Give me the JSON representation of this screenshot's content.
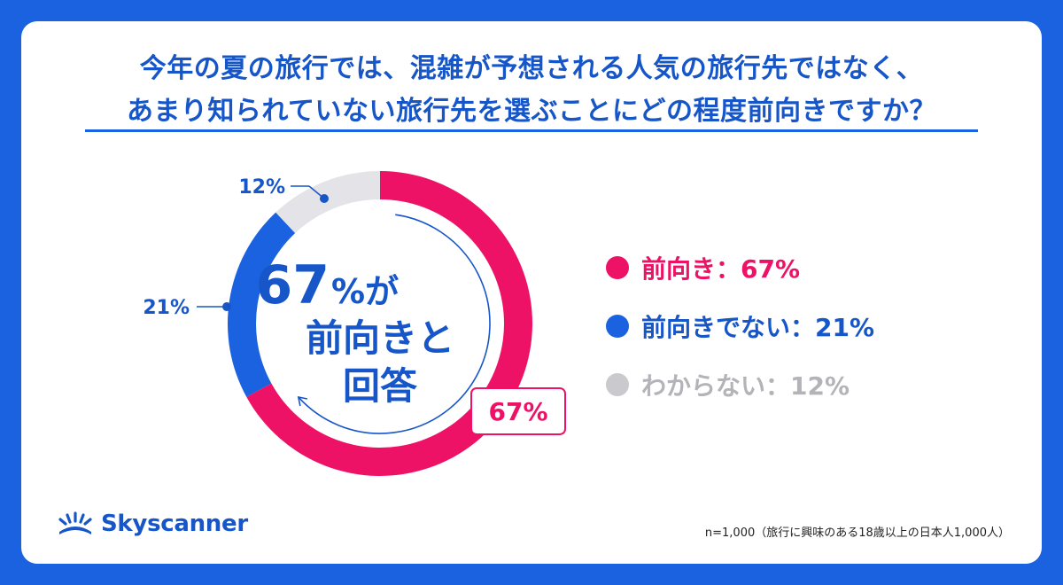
{
  "title": {
    "line1": "今年の夏の旅行では、混雑が予想される人気の旅行先ではなく、",
    "line2": "あまり知られていない旅行先を選ぶことにどの程度前向きですか？"
  },
  "center": {
    "big_number": "67",
    "unit_line1": "%が",
    "line2": "前向きと",
    "line3": "回答"
  },
  "chart_data": {
    "type": "pie",
    "style": "donut",
    "categories": [
      "前向き",
      "前向きでない",
      "わからない"
    ],
    "values": [
      67,
      21,
      12
    ],
    "value_labels": [
      "67%",
      "21%",
      "12%"
    ],
    "colors": [
      "#ed1266",
      "#1a62e0",
      "#e3e3e8"
    ],
    "label_colors": [
      "#ed1266",
      "#1656c9",
      "#1656c9"
    ],
    "start_angle_deg": 0,
    "direction": "clockwise",
    "legend_position": "right"
  },
  "legend": [
    {
      "text": "前向き：67%",
      "color": "#ed1266",
      "text_color": "#ed1266"
    },
    {
      "text": "前向きでない：21%",
      "color": "#1a62e0",
      "text_color": "#1656c9"
    },
    {
      "text": "わからない：12%",
      "color": "#c9c9ce",
      "text_color": "#b3b3b8"
    }
  ],
  "logo": {
    "text": "Skyscanner",
    "icon": "sunrise-logo-icon",
    "color": "#1656c9"
  },
  "footnote": "n=1,000（旅行に興味のある18歳以上の日本人1,000人）"
}
